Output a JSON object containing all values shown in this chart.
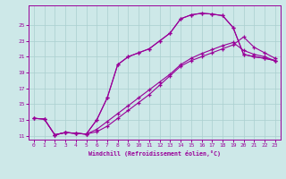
{
  "bg_color": "#cde8e8",
  "line_color": "#990099",
  "xlim": [
    -0.5,
    23.5
  ],
  "ylim": [
    10.5,
    27.5
  ],
  "xticks": [
    0,
    1,
    2,
    3,
    4,
    5,
    6,
    7,
    8,
    9,
    10,
    11,
    12,
    13,
    14,
    15,
    16,
    17,
    18,
    19,
    20,
    21,
    22,
    23
  ],
  "yticks": [
    11,
    13,
    15,
    17,
    19,
    21,
    23,
    25
  ],
  "grid_color": "#aacfcf",
  "curve1_x": [
    0,
    1,
    2,
    3,
    4,
    5,
    6,
    7,
    8,
    9,
    10,
    11,
    12,
    13,
    14,
    15,
    16,
    17,
    18,
    19,
    20,
    21,
    22,
    23
  ],
  "curve1_y": [
    13.2,
    13.1,
    11.1,
    11.4,
    11.3,
    11.2,
    13.0,
    15.8,
    20.0,
    21.0,
    21.5,
    22.0,
    23.0,
    24.0,
    25.8,
    26.3,
    26.5,
    26.4,
    26.2,
    24.7,
    21.3,
    21.0,
    20.8,
    20.5
  ],
  "curve2_x": [
    2,
    3,
    4,
    5,
    6,
    7,
    8,
    9,
    10,
    11,
    12,
    13,
    14,
    15,
    16,
    17,
    18,
    19,
    20,
    21,
    22,
    23
  ],
  "curve2_y": [
    11.1,
    11.4,
    11.3,
    11.2,
    13.0,
    15.8,
    20.0,
    21.0,
    21.5,
    22.0,
    23.0,
    24.0,
    25.8,
    26.3,
    26.5,
    26.4,
    26.2,
    24.7,
    21.3,
    21.0,
    20.8,
    20.5
  ],
  "curve3_x": [
    0,
    1,
    2,
    3,
    4,
    5,
    6,
    7,
    8,
    9,
    10,
    11,
    12,
    13,
    14,
    15,
    16,
    17,
    18,
    19,
    20,
    21,
    22,
    23
  ],
  "curve3_y": [
    13.2,
    13.1,
    11.1,
    11.4,
    11.3,
    11.2,
    11.8,
    12.8,
    13.8,
    14.8,
    15.8,
    16.8,
    17.8,
    18.8,
    20.0,
    20.8,
    21.4,
    21.9,
    22.4,
    22.8,
    21.8,
    21.3,
    21.0,
    20.5
  ],
  "curve4_x": [
    0,
    1,
    2,
    3,
    4,
    5,
    6,
    7,
    8,
    9,
    10,
    11,
    12,
    13,
    14,
    15,
    16,
    17,
    18,
    19,
    20,
    21,
    22,
    23
  ],
  "curve4_y": [
    13.2,
    13.1,
    11.1,
    11.4,
    11.3,
    11.2,
    11.5,
    12.2,
    13.2,
    14.2,
    15.2,
    16.2,
    17.4,
    18.6,
    19.8,
    20.5,
    21.0,
    21.5,
    22.0,
    22.5,
    23.5,
    22.2,
    21.5,
    20.8
  ],
  "xlabel": "Windchill (Refroidissement éolien,°C)"
}
